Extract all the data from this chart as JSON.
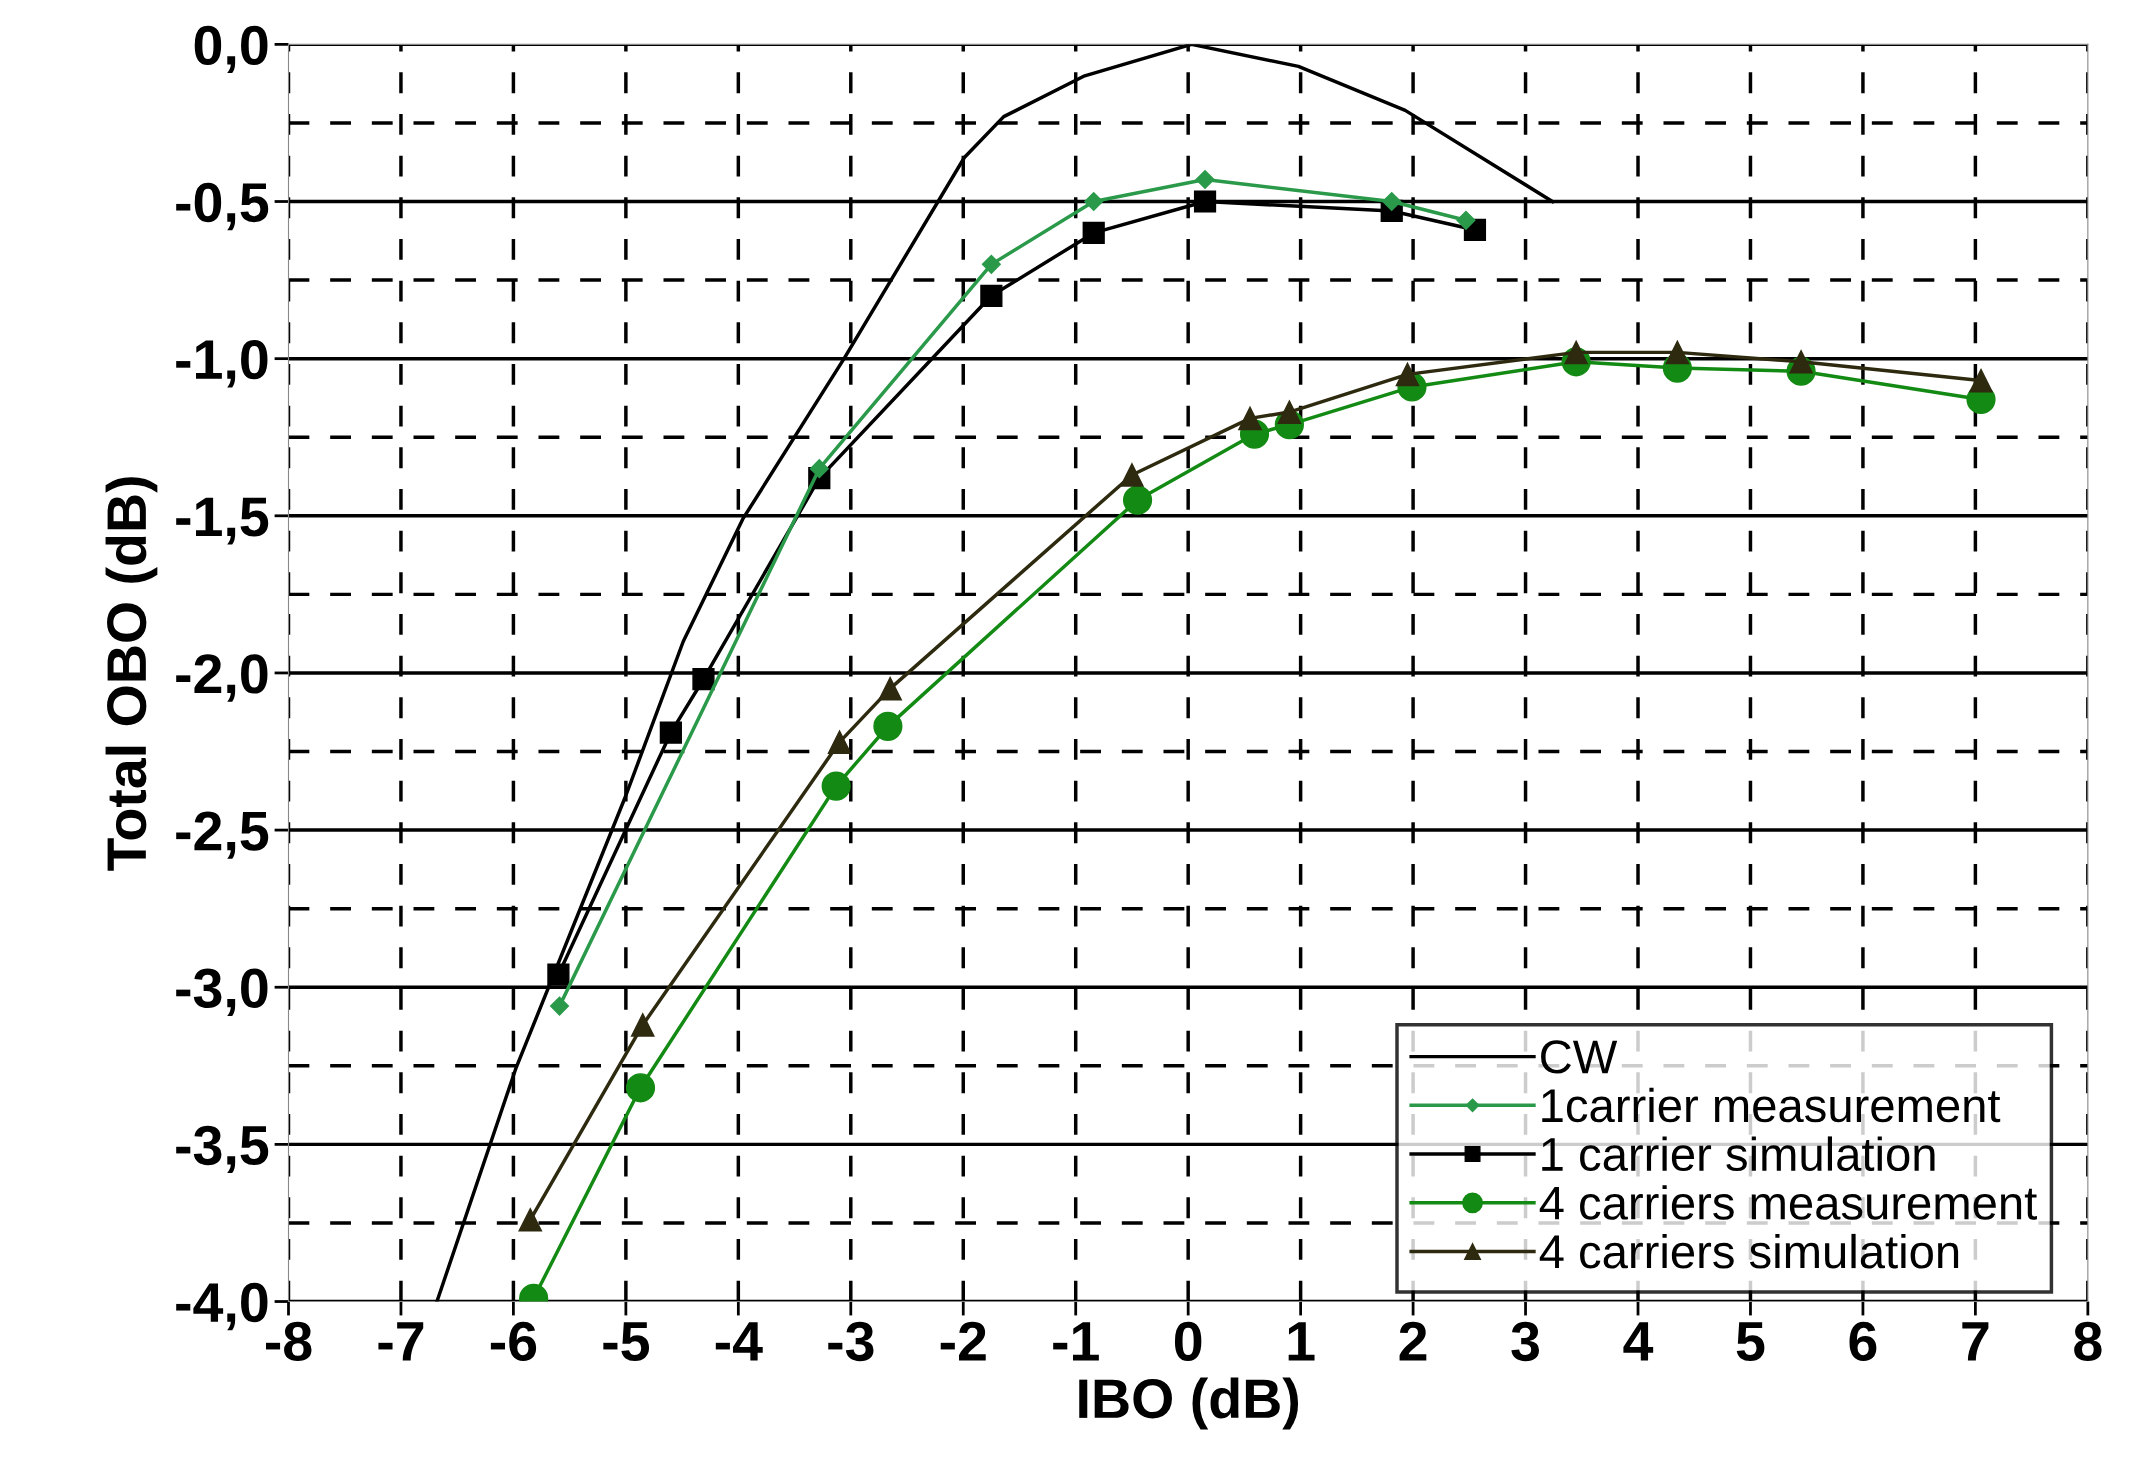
{
  "chart_data": {
    "type": "line",
    "xlabel": "IBO (dB)",
    "ylabel": "Total OBO (dB)",
    "xlim": [
      -8,
      8
    ],
    "xticks": [
      -8,
      -7,
      -6,
      -5,
      -4,
      -3,
      -2,
      -1,
      0,
      1,
      2,
      3,
      4,
      5,
      6,
      7,
      8
    ],
    "ylim": [
      -4,
      0
    ],
    "yticks": [
      {
        "value": 0,
        "label": "0,0"
      },
      {
        "value": -0.5,
        "label": "-0,5"
      },
      {
        "value": -1,
        "label": "-1,0"
      },
      {
        "value": -1.5,
        "label": "-1,5"
      },
      {
        "value": -2,
        "label": "-2,0"
      },
      {
        "value": -2.5,
        "label": "-2,5"
      },
      {
        "value": -3,
        "label": "-3,0"
      },
      {
        "value": -3.5,
        "label": "-3,5"
      },
      {
        "value": -4,
        "label": "-4,0"
      }
    ],
    "grid": true,
    "legend": "bottom right",
    "series": [
      {
        "name": "CW",
        "color": "#000000",
        "marker": "none",
        "x": [
          -6.68,
          -5.98,
          -5.0,
          -4.49,
          -3.96,
          -3.06,
          -1.99,
          -1.64,
          -0.92,
          0.03,
          0.98,
          1.93,
          3.24
        ],
        "values": [
          -4.0,
          -3.26,
          -2.39,
          -1.9,
          -1.51,
          -1.0,
          -0.36,
          -0.23,
          -0.1,
          0.0,
          -0.07,
          -0.21,
          -0.5
        ]
      },
      {
        "name": "1carrier measurement",
        "color": "#2a9a4a",
        "marker": "diamond",
        "x": [
          -5.59,
          -3.28,
          -1.75,
          -0.84,
          0.15,
          1.81,
          2.47
        ],
        "values": [
          -3.06,
          -1.35,
          -0.7,
          -0.5,
          -0.43,
          -0.5,
          -0.56
        ]
      },
      {
        "name": "1 carrier simulation",
        "color": "#000000",
        "marker": "square",
        "x": [
          -5.6,
          -4.6,
          -4.31,
          -3.28,
          -1.75,
          -0.84,
          0.15,
          1.81,
          2.55
        ],
        "values": [
          -2.96,
          -2.19,
          -2.02,
          -1.38,
          -0.8,
          -0.6,
          -0.5,
          -0.53,
          -0.59
        ]
      },
      {
        "name": "4 carriers measurement",
        "color": "#138a13",
        "marker": "circle",
        "x": [
          -5.82,
          -4.87,
          -3.13,
          -2.67,
          -0.45,
          0.59,
          0.9,
          1.99,
          3.45,
          4.35,
          5.45,
          7.05
        ],
        "values": [
          -3.99,
          -3.32,
          -2.36,
          -2.17,
          -1.45,
          -1.24,
          -1.21,
          -1.09,
          -1.01,
          -1.03,
          -1.04,
          -1.13
        ]
      },
      {
        "name": "4 carriers simulation",
        "color": "#2e2a10",
        "marker": "triangle",
        "x": [
          -5.85,
          -4.85,
          -3.1,
          -2.65,
          -0.5,
          0.55,
          0.9,
          1.95,
          3.45,
          4.35,
          5.45,
          7.05
        ],
        "values": [
          -3.74,
          -3.12,
          -2.22,
          -2.05,
          -1.37,
          -1.19,
          -1.17,
          -1.05,
          -0.98,
          -0.98,
          -1.01,
          -1.07
        ]
      }
    ]
  }
}
